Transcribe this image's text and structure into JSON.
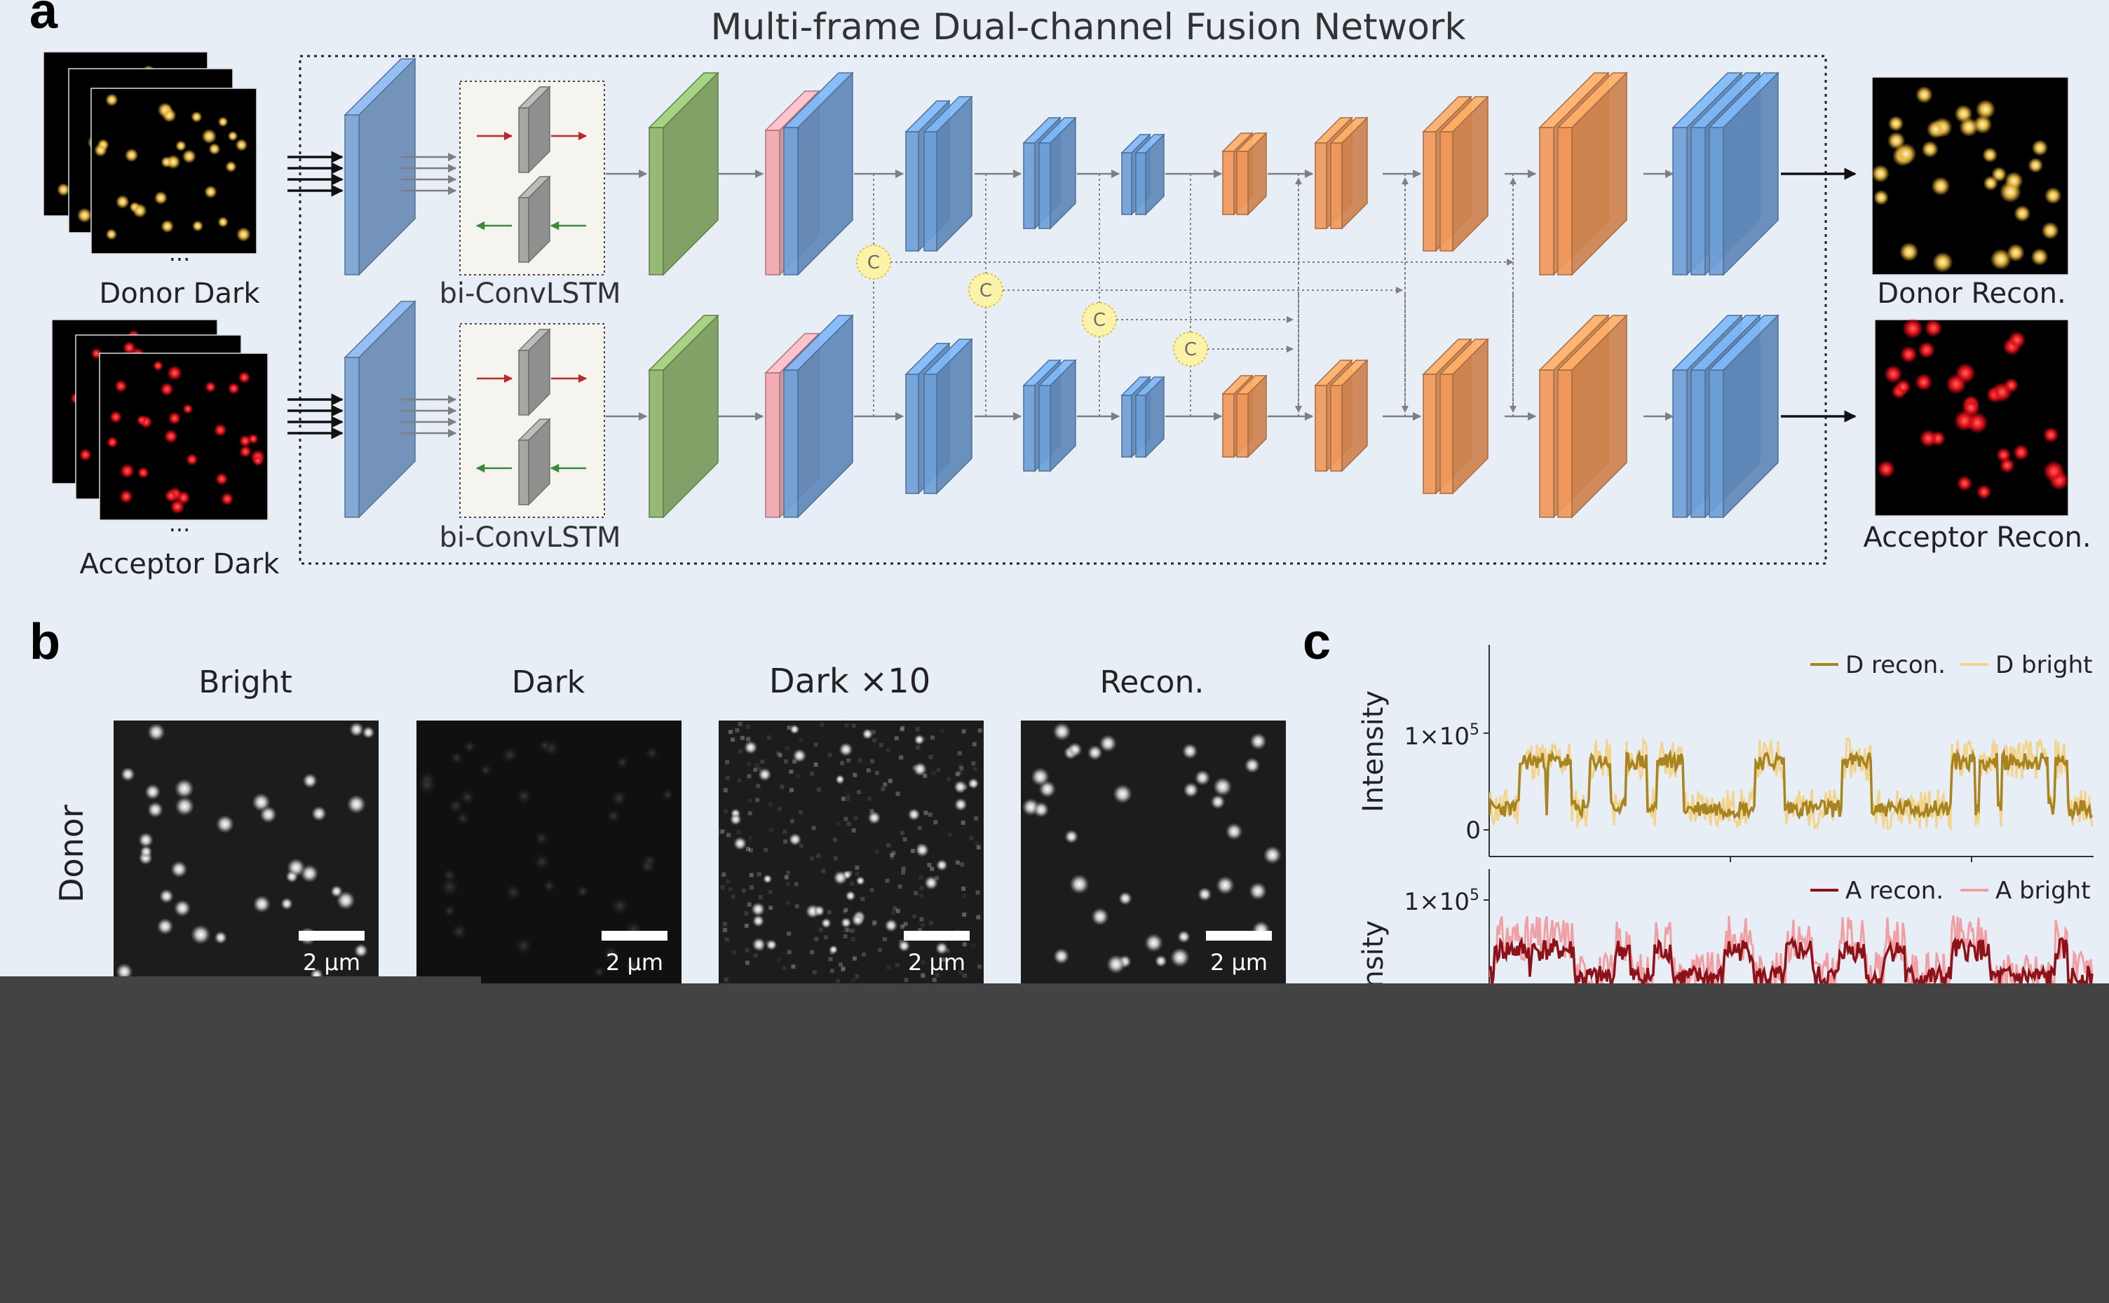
{
  "panel_a": {
    "letter": "a",
    "title": "Multi-frame Dual-channel Fusion Network",
    "ellipsis": "...",
    "donor_input_label": "Donor Dark",
    "acceptor_input_label": "Acceptor Dark",
    "lstm_label": "bi-ConvLSTM",
    "concat_symbol": "C",
    "donor_output_label": "Donor Recon.",
    "acceptor_output_label": "Acceptor Recon.",
    "colors": {
      "input_block": "#7aa3d4",
      "lstm_box_fill": "#f6f4ef",
      "lstm_cell": "#9e9e9e",
      "forward_arrow": "#c0272d",
      "backward_arrow": "#3a8a3a",
      "conv_block": "#8cb56a",
      "pink_block": "#f2a6ad",
      "encoder_block": "#6ea0d8",
      "decoder_block": "#f0995a",
      "concat_fill": "#fdf3a8",
      "donor_spot": "#f0c24a",
      "acceptor_spot": "#e8141c"
    }
  },
  "panel_b": {
    "letter": "b",
    "columns": [
      "Bright",
      "Dark",
      "Dark ×10",
      "Recon."
    ],
    "row_label": "Donor",
    "scale_bar": "2 μm"
  },
  "panel_c": {
    "letter": "c",
    "top_ylabel": "Intensity",
    "bottom_ylabel": "Intensity",
    "tick_1e5": "1×10",
    "tick_exp": "5",
    "tick_zero": "0",
    "top_legend": [
      {
        "name": "D recon.",
        "color": "#a8841e"
      },
      {
        "name": "D bright",
        "color": "#f3d48e"
      }
    ],
    "bottom_legend": [
      {
        "name": "A recon.",
        "color": "#8b1218"
      },
      {
        "name": "A bright",
        "color": "#f0a0a4"
      }
    ]
  }
}
